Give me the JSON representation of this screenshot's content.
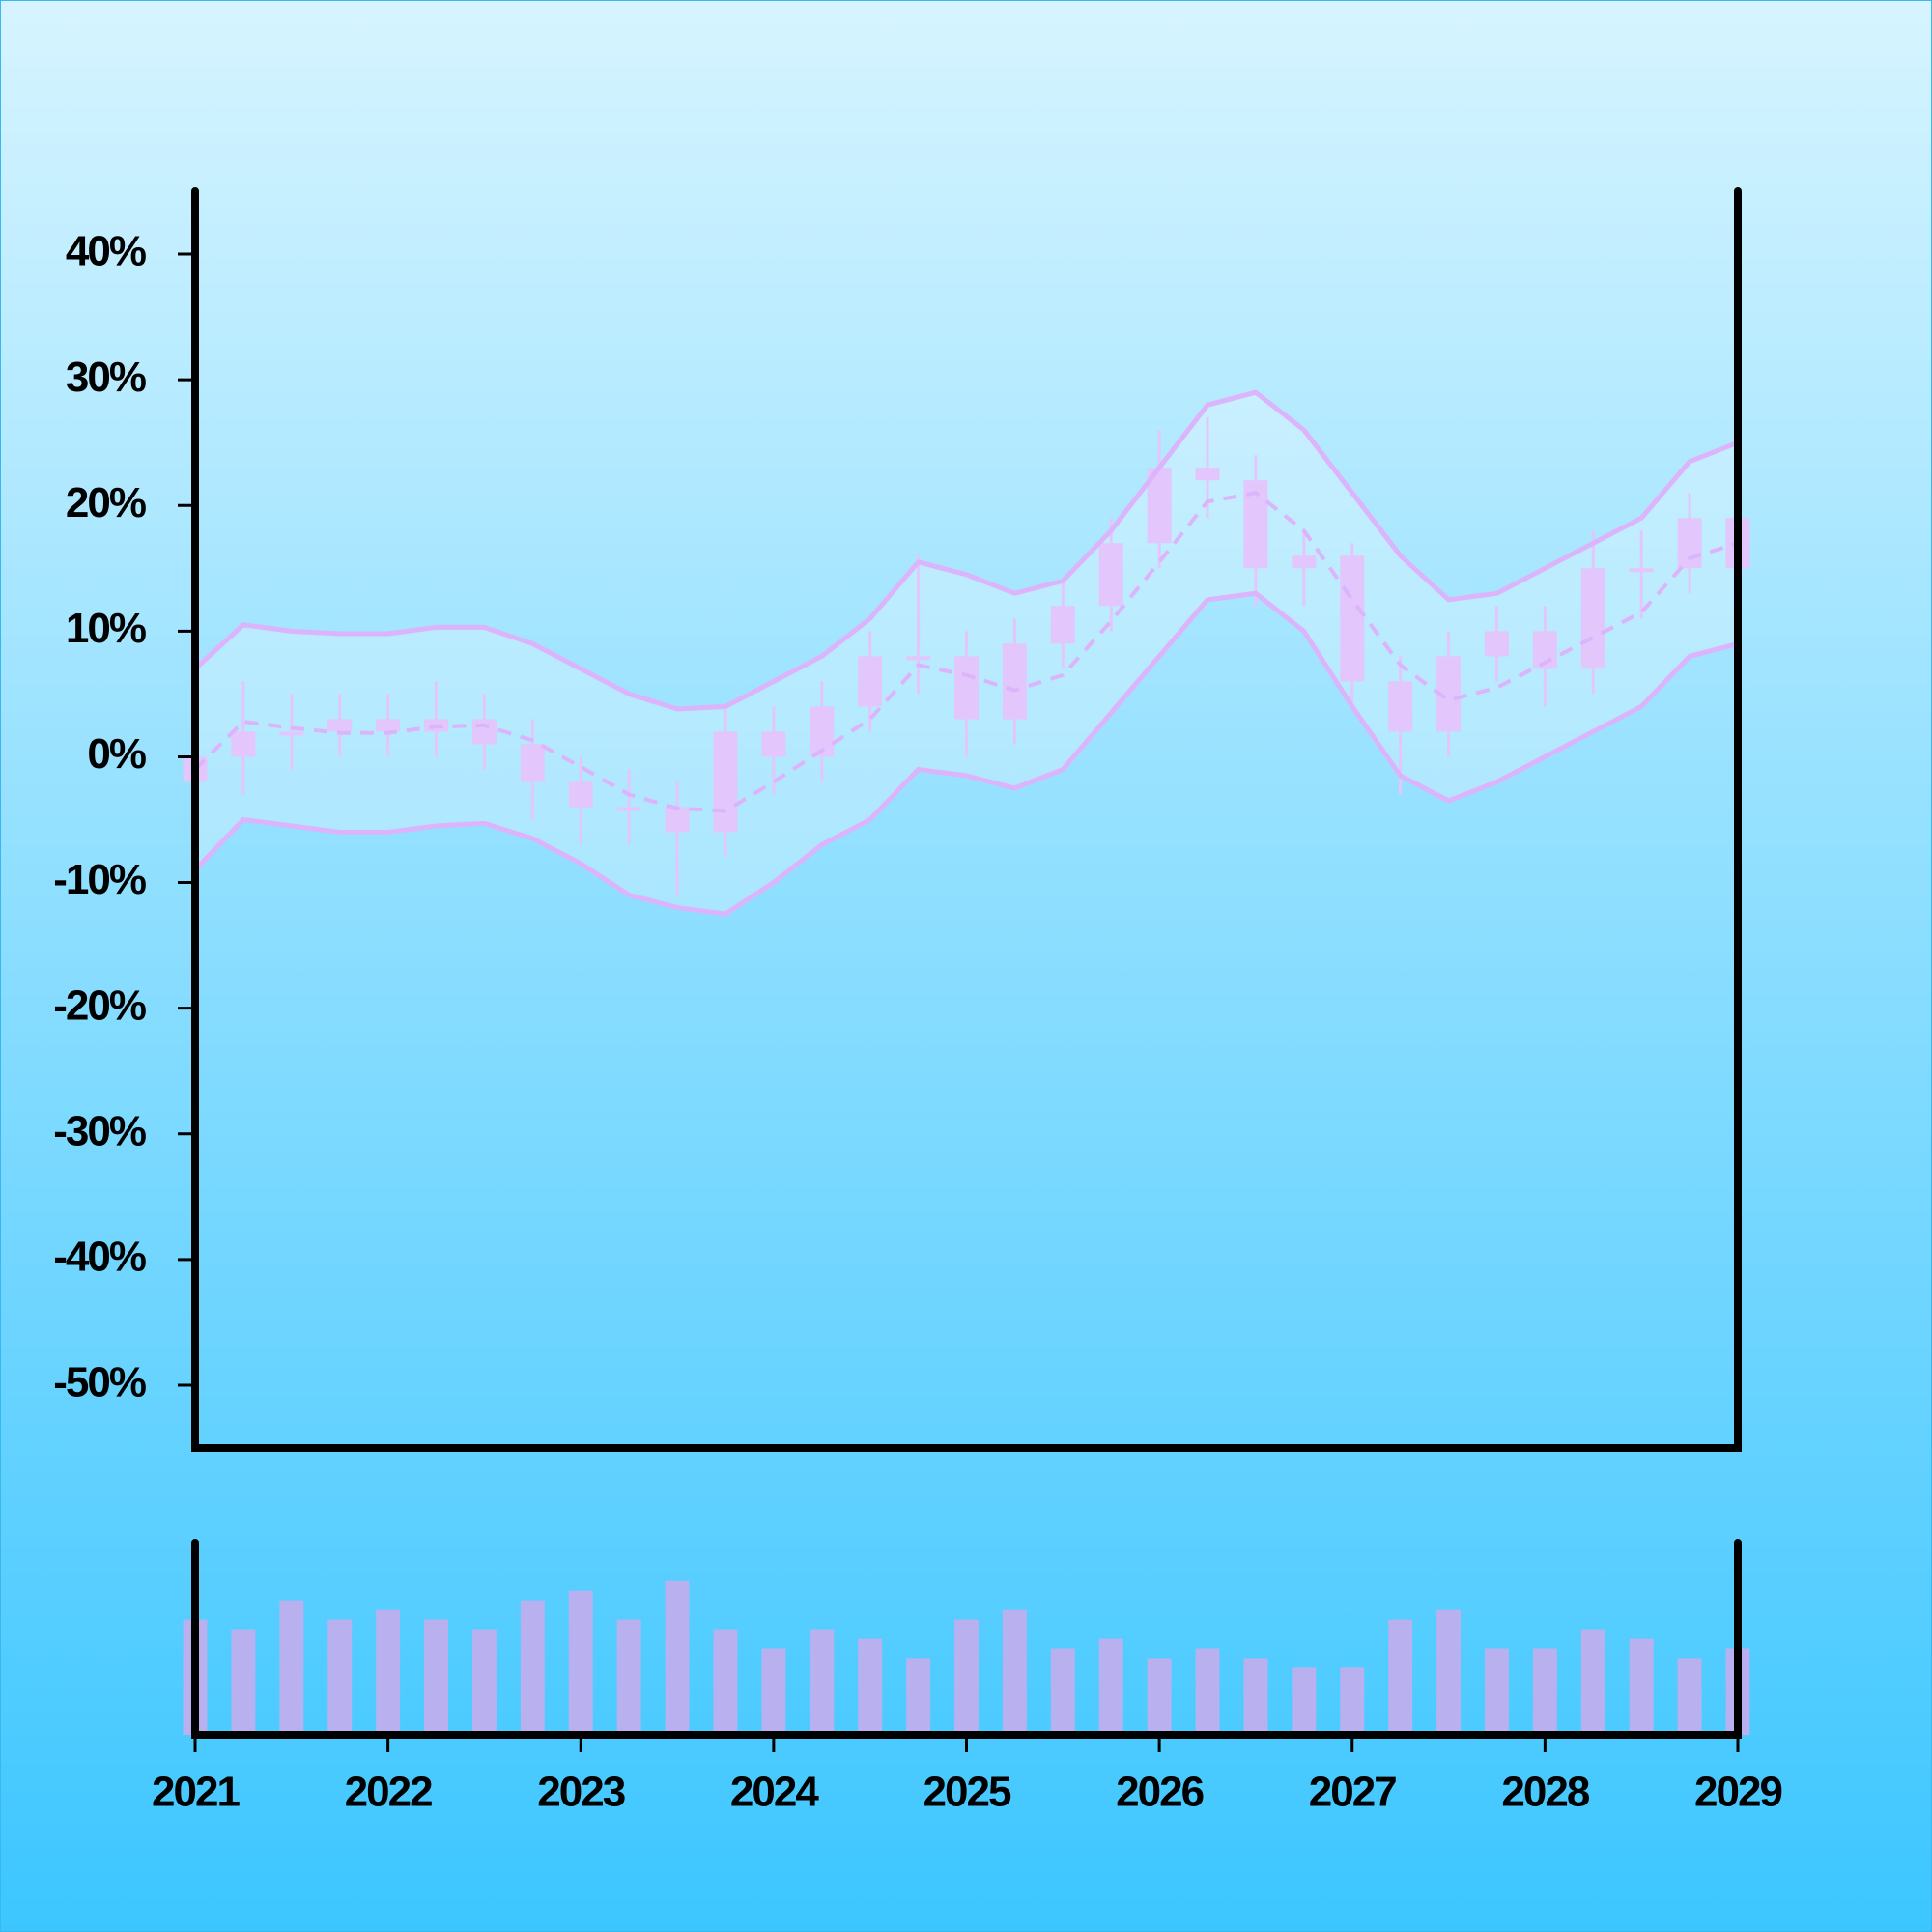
{
  "chart_data": {
    "type": "candlestick",
    "x": [
      2021,
      2021.25,
      2021.5,
      2021.75,
      2022,
      2022.25,
      2022.5,
      2022.75,
      2023,
      2023.25,
      2023.5,
      2023.75,
      2024,
      2024.25,
      2024.5,
      2024.75,
      2025,
      2025.25,
      2025.5,
      2025.75,
      2026,
      2026.25,
      2026.5,
      2026.75,
      2027,
      2027.25,
      2027.5,
      2027.75,
      2028,
      2028.25,
      2028.5,
      2028.75,
      2029
    ],
    "open": [
      -2,
      0,
      2,
      2,
      3,
      2,
      3,
      1,
      -2,
      -4,
      -4,
      -6,
      2,
      0,
      4,
      8,
      8,
      3,
      9,
      12,
      17,
      23,
      22,
      15,
      16,
      6,
      2,
      8,
      10,
      7,
      15,
      15,
      19
    ],
    "high": [
      2,
      6,
      5,
      5,
      5,
      6,
      5,
      3,
      0,
      -1,
      -2,
      4,
      4,
      6,
      10,
      16,
      10,
      11,
      14,
      19,
      26,
      27,
      24,
      18,
      17,
      8,
      10,
      12,
      12,
      18,
      18,
      21,
      21
    ],
    "low": [
      -4,
      -3,
      -1,
      0,
      0,
      0,
      -1,
      -5,
      -7,
      -7,
      -11,
      -8,
      -3,
      -2,
      2,
      5,
      0,
      1,
      7,
      10,
      15,
      19,
      12,
      12,
      4,
      -3,
      0,
      6,
      4,
      5,
      11,
      13,
      12
    ],
    "close": [
      0,
      2,
      2,
      3,
      2,
      3,
      1,
      -2,
      -4,
      -4,
      -6,
      2,
      0,
      4,
      8,
      8,
      3,
      9,
      12,
      17,
      23,
      22,
      15,
      16,
      6,
      2,
      8,
      10,
      7,
      15,
      15,
      19,
      15
    ],
    "upper": [
      7,
      10.5,
      10,
      9.8,
      9.8,
      10.3,
      10.3,
      9,
      7,
      5,
      3.8,
      4,
      6,
      8,
      11,
      15.5,
      14.5,
      13,
      14,
      18,
      23,
      28,
      29,
      26,
      21,
      16,
      12.5,
      13,
      15,
      17,
      19,
      23.5,
      25
    ],
    "middle": [
      -1,
      2.8,
      2.3,
      1.9,
      1.9,
      2.4,
      2.5,
      1.3,
      -0.8,
      -3,
      -4.1,
      -4.3,
      -2,
      0.5,
      3,
      7.3,
      6.5,
      5.3,
      6.5,
      10.8,
      15.5,
      20.3,
      21,
      18,
      12.5,
      7.3,
      4.5,
      5.5,
      7.5,
      9.5,
      11.5,
      15.8,
      17
    ],
    "lower": [
      -9,
      -5,
      -5.5,
      -6,
      -6,
      -5.5,
      -5.3,
      -6.5,
      -8.5,
      -11,
      -12,
      -12.5,
      -10,
      -7,
      -5,
      -1,
      -1.5,
      -2.5,
      -1,
      3.5,
      8,
      12.5,
      13,
      10,
      4,
      -1.5,
      -3.5,
      -2,
      0,
      2,
      4,
      8,
      9
    ],
    "volume": [
      60,
      55,
      70,
      60,
      65,
      60,
      55,
      70,
      75,
      60,
      80,
      55,
      45,
      55,
      50,
      40,
      60,
      65,
      45,
      50,
      40,
      45,
      40,
      35,
      35,
      60,
      65,
      45,
      45,
      55,
      50,
      40,
      45
    ],
    "candle_color": "#e3c6fb",
    "band_color": "#dcb4fb",
    "volume_color": "#b8b0ef",
    "xlim": [
      2021,
      2029
    ],
    "xticks": [
      2021,
      2022,
      2023,
      2024,
      2025,
      2026,
      2027,
      2028,
      2029
    ],
    "ylim": [
      -55,
      45
    ],
    "yticks": [
      {
        "value": -50,
        "label": "-50%"
      },
      {
        "value": -40,
        "label": "-40%"
      },
      {
        "value": -30,
        "label": "-30%"
      },
      {
        "value": -20,
        "label": "-20%"
      },
      {
        "value": -10,
        "label": "-10%"
      },
      {
        "value": 0,
        "label": "0%"
      },
      {
        "value": 10,
        "label": "10%"
      },
      {
        "value": 20,
        "label": "20%"
      },
      {
        "value": 30,
        "label": "30%"
      },
      {
        "value": 40,
        "label": "40%"
      }
    ],
    "volume_ylim": [
      0,
      100
    ]
  }
}
